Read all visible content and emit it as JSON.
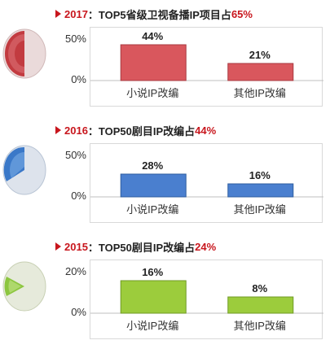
{
  "chart_data": [
    {
      "type": "bar",
      "title": {
        "year": "2017",
        "text": "：TOP5省级卫视备播IP项目占",
        "pct": "65%"
      },
      "categories": [
        "小说IP改编",
        "其他IP改编"
      ],
      "values": [
        44,
        21
      ],
      "value_labels": [
        "44%",
        "21%"
      ],
      "yticks": [
        "50%",
        "0%"
      ],
      "ylim": [
        0,
        50
      ],
      "color": "#d9575d",
      "border": "#a83a40",
      "icon": "pie-red-icon",
      "icon_color": "#c23b40"
    },
    {
      "type": "bar",
      "title": {
        "year": "2016",
        "text": "：TOP50剧目IP改编占",
        "pct": "44%"
      },
      "categories": [
        "小说IP改编",
        "其他IP改编"
      ],
      "values": [
        28,
        16
      ],
      "value_labels": [
        "28%",
        "16%"
      ],
      "yticks": [
        "50%",
        "0%"
      ],
      "ylim": [
        0,
        50
      ],
      "color": "#4a7fcf",
      "border": "#2f5e9f",
      "icon": "pie-blue-icon",
      "icon_color": "#3a78c8"
    },
    {
      "type": "bar",
      "title": {
        "year": "2015",
        "text": "：TOP50剧目IP改编占",
        "pct": "24%"
      },
      "categories": [
        "小说IP改编",
        "其他IP改编"
      ],
      "values": [
        16,
        8
      ],
      "value_labels": [
        "16%",
        "8%"
      ],
      "yticks": [
        "20%",
        "0%"
      ],
      "ylim": [
        0,
        20
      ],
      "color": "#9ccc3c",
      "border": "#6f9a24",
      "icon": "pie-green-icon",
      "icon_color": "#8cc63f"
    }
  ]
}
